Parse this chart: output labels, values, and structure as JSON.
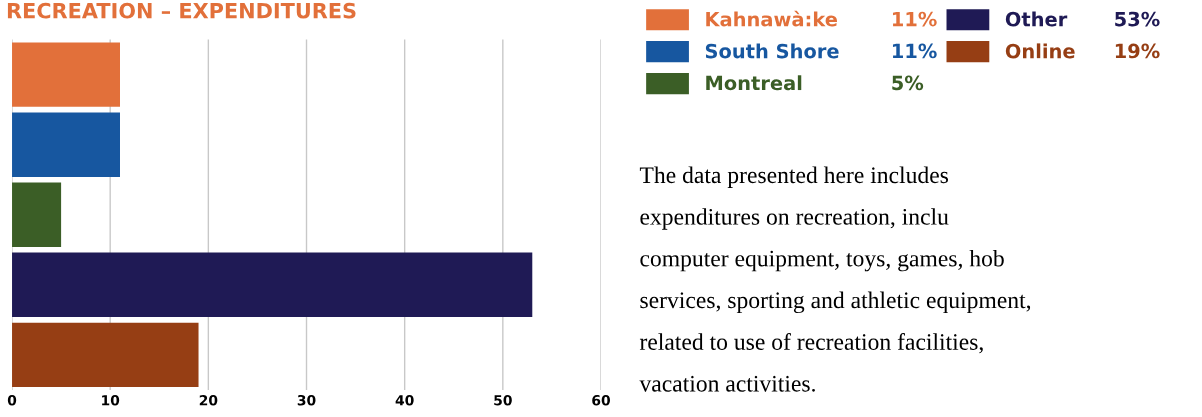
{
  "chart_data": {
    "type": "bar",
    "orientation": "horizontal",
    "title": "RECREATION – EXPENDITURES",
    "categories": [
      null,
      null,
      null,
      null,
      null
    ],
    "series": [
      {
        "name": "Kahnawà:ke",
        "color": "#e2703a",
        "values": [
          11,
          null,
          null,
          null,
          null
        ]
      },
      {
        "name": "South Shore",
        "color": "#1757a0",
        "values": [
          null,
          11,
          null,
          null,
          null
        ]
      },
      {
        "name": "Montreal",
        "color": "#3b5e26",
        "values": [
          null,
          null,
          5,
          null,
          null
        ]
      },
      {
        "name": "Other",
        "color": "#1f1a55",
        "values": [
          null,
          null,
          null,
          53,
          null
        ]
      },
      {
        "name": "Online",
        "color": "#963e14",
        "values": [
          null,
          null,
          null,
          null,
          19
        ]
      }
    ],
    "xlim": [
      0,
      60
    ],
    "xticks": [
      0,
      10,
      20,
      30,
      40,
      50,
      60
    ],
    "grid": "x",
    "legend": "right",
    "tick_labels": "x",
    "annotations": [
      "11%",
      "11%",
      "5%",
      "53%",
      "19%",
      "The data presented here includes",
      "expenditures on recreation, inclu",
      "computer equipment, toys, games, hob",
      "services, sporting and athletic equipment,",
      "related to use of recreation facilities,",
      "vacation activities."
    ]
  }
}
